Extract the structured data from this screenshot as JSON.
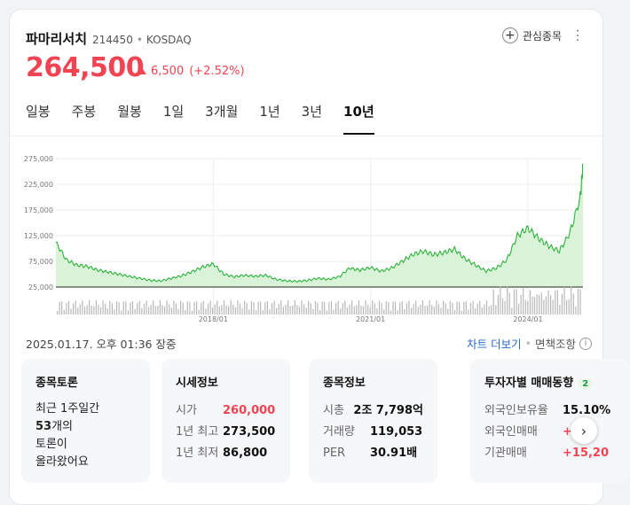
{
  "stock": {
    "name": "파마리서치",
    "code": "214450",
    "market": "KOSDAQ",
    "separator": "•",
    "price": "264,500",
    "change": "6,500",
    "change_pct": "(+2.52%)",
    "watch_label": "관심종목",
    "colors": {
      "up": "#f04452",
      "link": "#2a6ac8",
      "chart_line": "#2bb33a",
      "chart_fill": "#d9f3d9"
    }
  },
  "tabs": [
    "일봉",
    "주봉",
    "월봉",
    "1일",
    "3개월",
    "1년",
    "3년",
    "10년"
  ],
  "active_tab": "10년",
  "chart_data": {
    "type": "area",
    "ylim": [
      25000,
      275000
    ],
    "y_ticks": [
      "275,000",
      "225,000",
      "175,000",
      "125,000",
      "75,000",
      "25,000"
    ],
    "x_ticks": [
      "2018/01",
      "2021/01",
      "2024/01"
    ],
    "grid": true,
    "x": [
      2015.0,
      2015.2,
      2015.4,
      2015.6,
      2015.8,
      2016.0,
      2016.2,
      2016.4,
      2016.6,
      2016.8,
      2017.0,
      2017.2,
      2017.4,
      2017.6,
      2017.8,
      2018.0,
      2018.2,
      2018.4,
      2018.6,
      2018.8,
      2019.0,
      2019.2,
      2019.4,
      2019.6,
      2019.8,
      2020.0,
      2020.2,
      2020.4,
      2020.6,
      2020.8,
      2021.0,
      2021.2,
      2021.4,
      2021.6,
      2021.8,
      2022.0,
      2022.2,
      2022.4,
      2022.6,
      2022.8,
      2023.0,
      2023.2,
      2023.4,
      2023.6,
      2023.8,
      2024.0,
      2024.2,
      2024.4,
      2024.6,
      2024.8,
      2025.0,
      2025.05
    ],
    "y": [
      112000,
      78000,
      68000,
      65000,
      58000,
      54000,
      50000,
      46000,
      42000,
      38000,
      37000,
      42000,
      47000,
      55000,
      64000,
      70000,
      50000,
      45000,
      48000,
      46000,
      48000,
      40000,
      37000,
      36000,
      38000,
      42000,
      40000,
      45000,
      62000,
      58000,
      63000,
      56000,
      62000,
      75000,
      88000,
      95000,
      88000,
      92000,
      99000,
      80000,
      68000,
      56000,
      62000,
      78000,
      125000,
      140000,
      120000,
      105000,
      95000,
      130000,
      200000,
      264500
    ]
  },
  "timestamp": "2025.01.17. 오후 01:36 장중",
  "links": {
    "chart_more": "차트 더보기",
    "disclosure": "면책조항",
    "info_icon": "ⓘ"
  },
  "panels": {
    "discussion": {
      "title": "종목토론",
      "line1": "최근 1주일간",
      "count": "53",
      "count_suffix": "개의",
      "line3": "토론이",
      "line4": "올라왔어요"
    },
    "quote": {
      "title": "시세정보",
      "rows": [
        {
          "label": "시가",
          "value": "260,000"
        },
        {
          "label": "1년 최고",
          "value": "273,500"
        },
        {
          "label": "1년 최저",
          "value": "86,800"
        }
      ]
    },
    "info": {
      "title": "종목정보",
      "rows": [
        {
          "label": "시총",
          "value": "2조 7,798억"
        },
        {
          "label": "거래량",
          "value": "119,053"
        },
        {
          "label": "PER",
          "value": "30.91배"
        }
      ]
    },
    "investor": {
      "title": "투자자별 매매동향",
      "badge": "2",
      "rows": [
        {
          "label": "외국인보유율",
          "value": "15.10%"
        },
        {
          "label": "외국인매매",
          "value": "+"
        },
        {
          "label": "기관매매",
          "value": "+15,20"
        }
      ]
    }
  }
}
